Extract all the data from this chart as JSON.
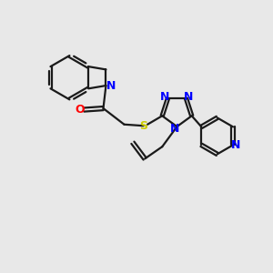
{
  "bg_color": "#e8e8e8",
  "bond_color": "#1a1a1a",
  "n_color": "#0000ff",
  "o_color": "#ff0000",
  "s_color": "#cccc00",
  "line_width": 1.6,
  "font_size": 8.5,
  "figsize": [
    3.0,
    3.0
  ],
  "dpi": 100,
  "xlim": [
    0,
    10
  ],
  "ylim": [
    0,
    10
  ]
}
